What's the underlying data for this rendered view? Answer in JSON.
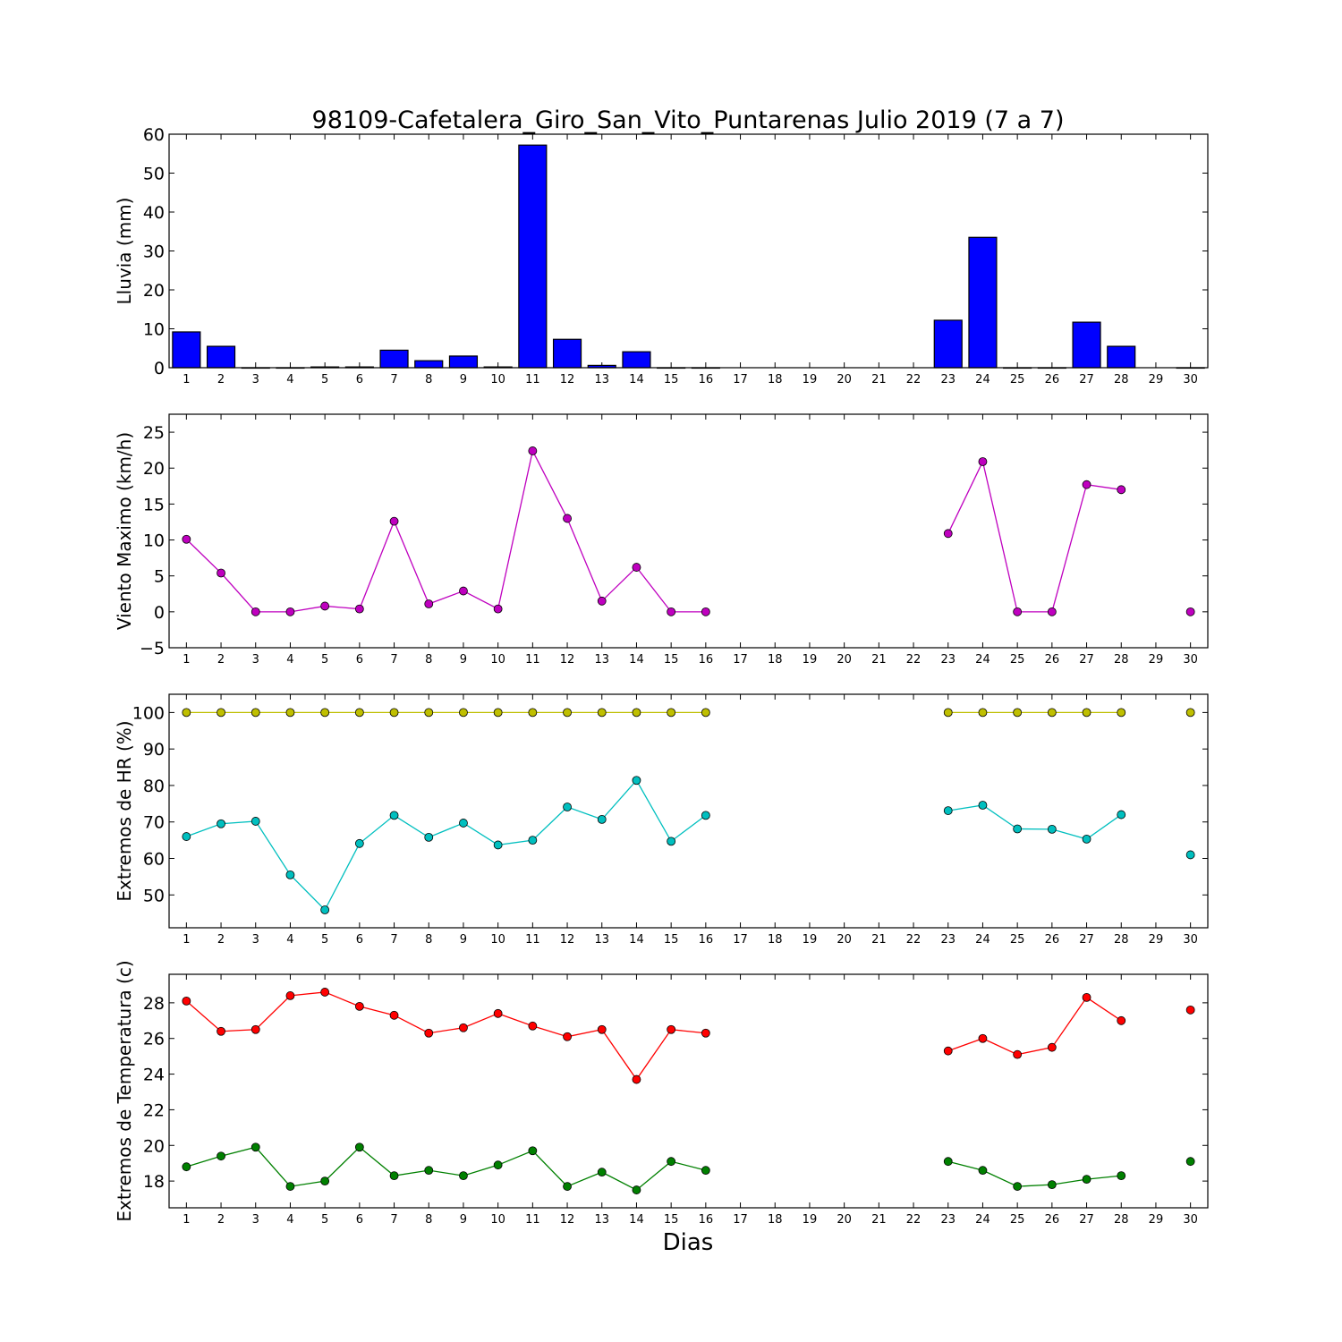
{
  "figure_title": "98109-Cafetalera_Giro_San_Vito_Puntarenas Julio 2019  (7 a 7)",
  "x_label": "Dias",
  "chart_data": [
    {
      "type": "bar",
      "ylabel": "Lluvia (mm)",
      "xlim": [
        0.5,
        30.5
      ],
      "ylim": [
        0,
        60
      ],
      "yticks": [
        0,
        10,
        20,
        30,
        40,
        50,
        60
      ],
      "x": [
        1,
        2,
        3,
        4,
        5,
        6,
        7,
        8,
        9,
        10,
        11,
        12,
        13,
        14,
        15,
        16,
        17,
        18,
        19,
        20,
        21,
        22,
        23,
        24,
        25,
        26,
        27,
        28,
        29,
        30
      ],
      "series": [
        {
          "color": "#0000ff",
          "values": [
            9.2,
            5.5,
            0,
            0,
            0.2,
            0.2,
            4.5,
            1.8,
            3.0,
            0.2,
            57.2,
            7.3,
            0.6,
            4.1,
            0,
            0,
            null,
            null,
            null,
            null,
            null,
            null,
            12.2,
            33.5,
            0,
            0,
            11.7,
            5.5,
            null,
            0
          ]
        }
      ]
    },
    {
      "type": "line",
      "ylabel": "Viento Maximo (km/h)",
      "xlim": [
        0.5,
        30.5
      ],
      "ylim": [
        -5,
        27.5
      ],
      "yticks": [
        -5,
        0,
        5,
        10,
        15,
        20,
        25
      ],
      "x": [
        1,
        2,
        3,
        4,
        5,
        6,
        7,
        8,
        9,
        10,
        11,
        12,
        13,
        14,
        15,
        16,
        17,
        18,
        19,
        20,
        21,
        22,
        23,
        24,
        25,
        26,
        27,
        28,
        29,
        30
      ],
      "series": [
        {
          "color": "#bf00bf",
          "values": [
            10.1,
            5.4,
            0,
            0,
            0.8,
            0.4,
            12.6,
            1.1,
            2.9,
            0.4,
            22.4,
            13.0,
            1.5,
            6.2,
            0,
            0,
            null,
            null,
            null,
            null,
            null,
            null,
            10.9,
            20.9,
            0,
            0,
            17.7,
            17.0,
            null,
            0
          ]
        }
      ]
    },
    {
      "type": "line",
      "ylabel": "Extremos de HR (%)",
      "xlim": [
        0.5,
        30.5
      ],
      "ylim": [
        41,
        105
      ],
      "yticks": [
        50,
        60,
        70,
        80,
        90,
        100
      ],
      "x": [
        1,
        2,
        3,
        4,
        5,
        6,
        7,
        8,
        9,
        10,
        11,
        12,
        13,
        14,
        15,
        16,
        17,
        18,
        19,
        20,
        21,
        22,
        23,
        24,
        25,
        26,
        27,
        28,
        29,
        30
      ],
      "series": [
        {
          "color": "#bfbf00",
          "values": [
            100,
            100,
            100,
            100,
            100,
            100,
            100,
            100,
            100,
            100,
            100,
            100,
            100,
            100,
            100,
            100,
            null,
            null,
            null,
            null,
            null,
            null,
            100,
            100,
            100,
            100,
            100,
            100,
            null,
            100
          ]
        },
        {
          "color": "#00bfbf",
          "values": [
            66.0,
            69.5,
            70.2,
            55.5,
            45.9,
            64.1,
            71.8,
            65.8,
            69.7,
            63.7,
            65.0,
            74.1,
            70.7,
            81.4,
            64.7,
            71.8,
            null,
            null,
            null,
            null,
            null,
            null,
            73.1,
            74.6,
            68.1,
            68.0,
            65.3,
            72.0,
            null,
            61.0
          ]
        }
      ]
    },
    {
      "type": "line",
      "ylabel": "Extremos de Temperatura (c)",
      "xlim": [
        0.5,
        30.5
      ],
      "ylim": [
        16.5,
        29.6
      ],
      "yticks": [
        18,
        20,
        22,
        24,
        26,
        28
      ],
      "x": [
        1,
        2,
        3,
        4,
        5,
        6,
        7,
        8,
        9,
        10,
        11,
        12,
        13,
        14,
        15,
        16,
        17,
        18,
        19,
        20,
        21,
        22,
        23,
        24,
        25,
        26,
        27,
        28,
        29,
        30
      ],
      "series": [
        {
          "color": "#ff0000",
          "values": [
            28.1,
            26.4,
            26.5,
            28.4,
            28.6,
            27.8,
            27.3,
            26.3,
            26.6,
            27.4,
            26.7,
            26.1,
            26.5,
            23.7,
            26.5,
            26.3,
            null,
            null,
            null,
            null,
            null,
            null,
            25.3,
            26.0,
            25.1,
            25.5,
            28.3,
            27.0,
            null,
            27.6
          ]
        },
        {
          "color": "#008000",
          "values": [
            18.8,
            19.4,
            19.9,
            17.7,
            18.0,
            19.9,
            18.3,
            18.6,
            18.3,
            18.9,
            19.7,
            17.7,
            18.5,
            17.5,
            19.1,
            18.6,
            null,
            null,
            null,
            null,
            null,
            null,
            19.1,
            18.6,
            17.7,
            17.8,
            18.1,
            18.3,
            null,
            19.1
          ]
        }
      ]
    }
  ]
}
